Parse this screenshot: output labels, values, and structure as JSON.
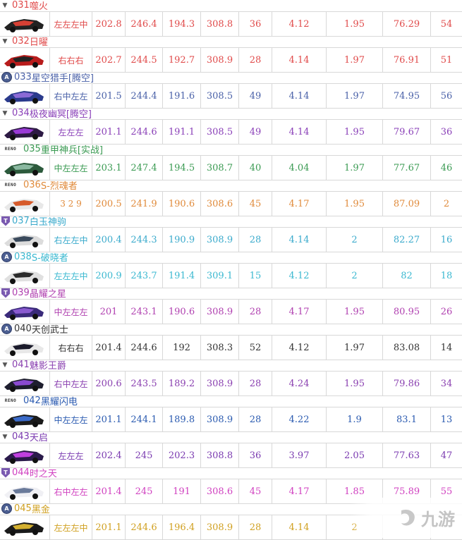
{
  "columns_note": "",
  "watermark_text": "九游",
  "rows": [
    {
      "no": "031",
      "name": "噬火",
      "tag": "",
      "badge": "v",
      "badge_text": "",
      "color": "#e04a4a",
      "car_colors": [
        "#222222",
        "#d64034"
      ],
      "combo": "左左左中",
      "v": [
        "202.8",
        "246.4",
        "194.3",
        "308.8",
        "36",
        "4.12",
        "1.95",
        "76.29",
        "54"
      ]
    },
    {
      "no": "032",
      "name": "日曜",
      "tag": "",
      "badge": "v",
      "badge_text": "",
      "color": "#e04a4a",
      "car_colors": [
        "#b81c1c",
        "#222222"
      ],
      "combo": "右右右",
      "v": [
        "202.7",
        "244.5",
        "192.7",
        "308.9",
        "28",
        "4.14",
        "1.97",
        "76.91",
        "51"
      ]
    },
    {
      "no": "033",
      "name": "星空猎手",
      "tag": "[腾空]",
      "badge": "circle",
      "badge_text": "A",
      "color": "#4a61a8",
      "car_colors": [
        "#2a3a8c",
        "#8c6ad6"
      ],
      "combo": "右中左左",
      "v": [
        "201.5",
        "244.4",
        "191.6",
        "308.5",
        "49",
        "4.14",
        "1.97",
        "74.95",
        "56"
      ]
    },
    {
      "no": "034",
      "name": "极夜幽冥",
      "tag": "[腾空]",
      "badge": "v",
      "badge_text": "",
      "color": "#8a40b8",
      "car_colors": [
        "#2d1a44",
        "#9a3ad6"
      ],
      "combo": "左左左",
      "v": [
        "201.1",
        "244.6",
        "191.1",
        "308.5",
        "49",
        "4.14",
        "1.95",
        "79.67",
        "36"
      ]
    },
    {
      "no": "035",
      "name": "重甲神兵",
      "tag": "[实战]",
      "badge": "reno",
      "badge_text": "RENO",
      "color": "#3a9a52",
      "car_colors": [
        "#2c5a3c",
        "#8ab8a0"
      ],
      "combo": "中左左左",
      "v": [
        "203.1",
        "247.4",
        "194.5",
        "308.7",
        "40",
        "4.04",
        "1.97",
        "77.67",
        "46"
      ]
    },
    {
      "no": "036",
      "name": "S-烈魂者",
      "tag": "",
      "badge": "reno",
      "badge_text": "RENO",
      "color": "#e08a3a",
      "car_colors": [
        "#e8e8e8",
        "#d65a2a"
      ],
      "combo": "3 2 9",
      "v": [
        "200.5",
        "241.9",
        "190.6",
        "308.6",
        "45",
        "4.17",
        "1.95",
        "87.09",
        "2"
      ]
    },
    {
      "no": "037",
      "name": "白玉神驹",
      "tag": "",
      "badge": "shield",
      "badge_text": "T",
      "color": "#3aaacc",
      "car_colors": [
        "#dcdcdc",
        "#3a4a5c"
      ],
      "combo": "右左左中",
      "v": [
        "200.4",
        "244.3",
        "190.9",
        "308.9",
        "28",
        "4.14",
        "2",
        "82.27",
        "16"
      ]
    },
    {
      "no": "038",
      "name": "S-破晓者",
      "tag": "",
      "badge": "circle",
      "badge_text": "A",
      "color": "#3ab8d0",
      "car_colors": [
        "#e0e0e0",
        "#2a2a2a"
      ],
      "combo": "左左左中",
      "v": [
        "200.9",
        "243.7",
        "191.4",
        "309.1",
        "15",
        "4.12",
        "2",
        "82",
        "18"
      ]
    },
    {
      "no": "039",
      "name": "晶耀之星",
      "tag": "",
      "badge": "shield",
      "badge_text": "T",
      "color": "#b040b0",
      "car_colors": [
        "#3a2a7a",
        "#8a5ad0"
      ],
      "combo": "中左左左",
      "v": [
        "201",
        "243.1",
        "190.6",
        "308.9",
        "28",
        "4.17",
        "1.95",
        "80.95",
        "26"
      ]
    },
    {
      "no": "040",
      "name": "天创武士",
      "tag": "",
      "badge": "circle",
      "badge_text": "A",
      "color": "#333333",
      "car_colors": [
        "#e8e8e8",
        "#1a1a2a"
      ],
      "combo": "右右右",
      "v": [
        "201.4",
        "244.6",
        "192",
        "308.3",
        "52",
        "4.12",
        "1.97",
        "83.08",
        "14"
      ]
    },
    {
      "no": "041",
      "name": "魅影王爵",
      "tag": "",
      "badge": "v",
      "badge_text": "",
      "color": "#8a40b0",
      "car_colors": [
        "#1e1e2e",
        "#8a4ad0"
      ],
      "combo": "右中左左",
      "v": [
        "200.6",
        "243.5",
        "189.2",
        "308.9",
        "28",
        "4.24",
        "1.95",
        "79.86",
        "34"
      ]
    },
    {
      "no": "042",
      "name": "黑耀闪电",
      "tag": "",
      "badge": "reno",
      "badge_text": "RENO",
      "color": "#2a5ab0",
      "car_colors": [
        "#1a1a1a",
        "#3a6ac8"
      ],
      "combo": "中左左左",
      "v": [
        "201.1",
        "244.1",
        "189.8",
        "308.9",
        "28",
        "4.22",
        "1.9",
        "83.1",
        "13"
      ]
    },
    {
      "no": "043",
      "name": "天启",
      "tag": "",
      "badge": "v",
      "badge_text": "",
      "color": "#7a3ab0",
      "car_colors": [
        "#2a1a4a",
        "#c040e0"
      ],
      "combo": "左左左",
      "v": [
        "202.4",
        "245",
        "202.3",
        "308.8",
        "36",
        "3.97",
        "2.05",
        "77.63",
        "47"
      ]
    },
    {
      "no": "044",
      "name": "时之天",
      "tag": "",
      "badge": "shield",
      "badge_text": "T",
      "color": "#d040c0",
      "car_colors": [
        "#f0f0f4",
        "#6a7a9a"
      ],
      "combo": "右中左左",
      "v": [
        "201.4",
        "245",
        "191",
        "308.6",
        "45",
        "4.17",
        "1.85",
        "75.89",
        "55"
      ]
    },
    {
      "no": "045",
      "name": "黑金",
      "tag": "",
      "badge": "circle",
      "badge_text": "A",
      "color": "#d0a020",
      "car_colors": [
        "#1a1a1a",
        "#d4b030"
      ],
      "combo": "左左左中",
      "v": [
        "201.1",
        "244.6",
        "196.4",
        "308.9",
        "28",
        "4.14",
        "2",
        "",
        ""
      ]
    }
  ]
}
